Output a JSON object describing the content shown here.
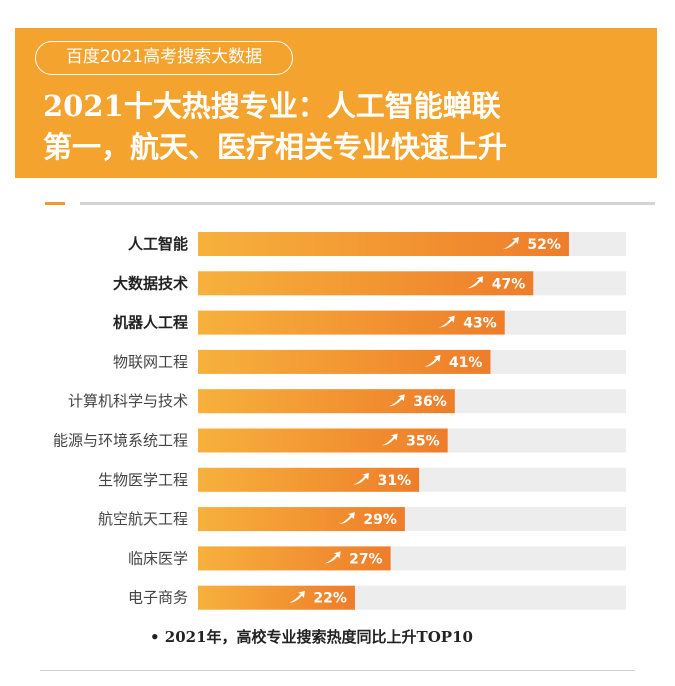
{
  "banner": {
    "tag": "百度2021高考搜索大数据",
    "headline_line1": "2021十大热搜专业：人工智能蝉联",
    "headline_line2": "第一，航天、医疗相关专业快速上升",
    "color": "#f3a32e"
  },
  "chart_data": {
    "type": "bar",
    "orientation": "horizontal",
    "categories": [
      "人工智能",
      "大数据技术",
      "机器人工程",
      "物联网工程",
      "计算机科学与技术",
      "能源与环境系统工程",
      "生物医学工程",
      "航空航天工程",
      "临床医学",
      "电子商务"
    ],
    "values": [
      52,
      47,
      43,
      41,
      36,
      35,
      31,
      29,
      27,
      22
    ],
    "value_labels": [
      "52%",
      "47%",
      "43%",
      "41%",
      "36%",
      "35%",
      "31%",
      "29%",
      "27%",
      "22%"
    ],
    "bold_categories": [
      0,
      1,
      2
    ],
    "xlim": [
      0,
      60
    ],
    "bar_color_start": "#f7b13c",
    "bar_color_end": "#ee7d2a",
    "track_color": "#ededed"
  },
  "footnote": "• 2021年，高校专业搜索热度同比上升TOP10"
}
